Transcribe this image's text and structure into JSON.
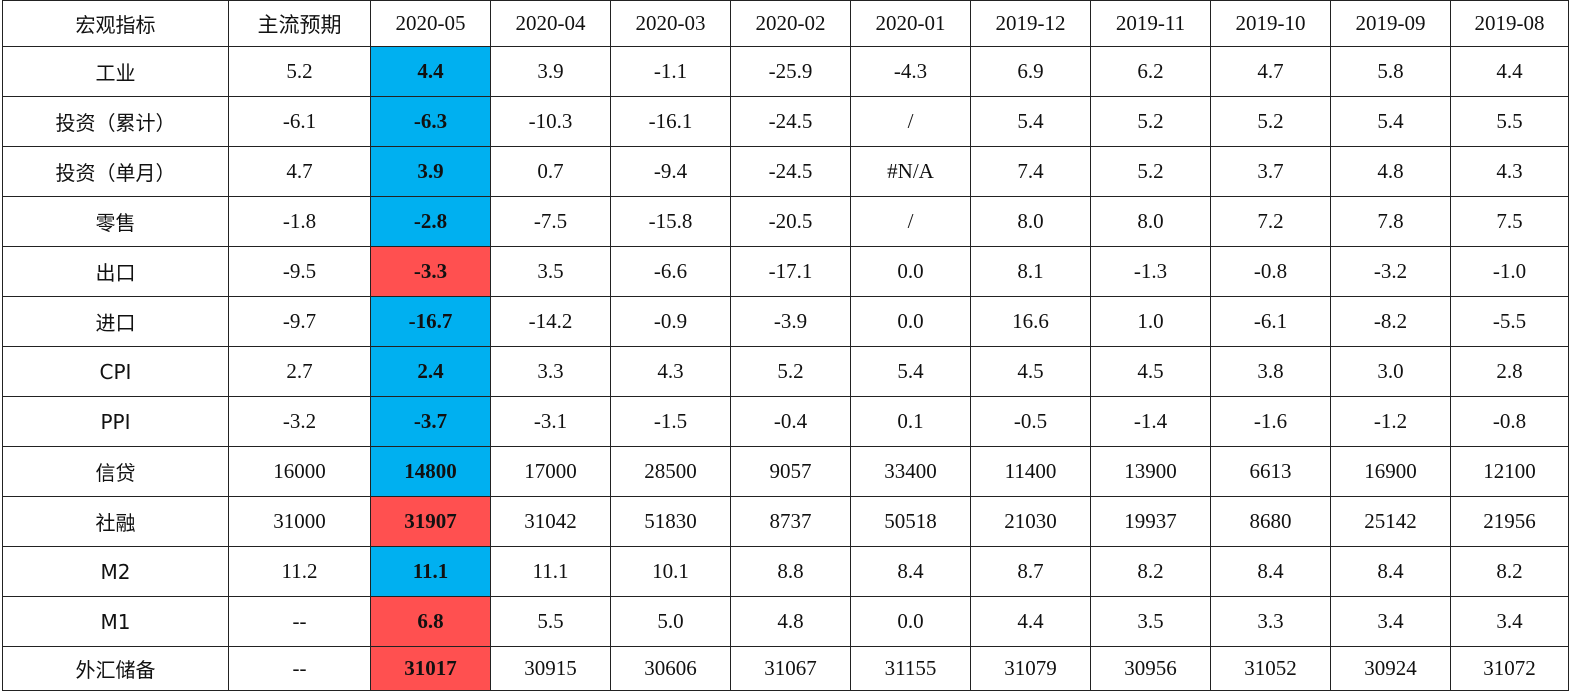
{
  "chart_data": {
    "type": "table",
    "columns": [
      "宏观指标",
      "主流预期",
      "2020-05",
      "2020-04",
      "2020-03",
      "2020-02",
      "2020-01",
      "2019-12",
      "2019-11",
      "2019-10",
      "2019-09",
      "2019-08"
    ],
    "rows": [
      {
        "indicator": "工业",
        "expected": "5.2",
        "current": "4.4",
        "current_highlight": "blue",
        "history": [
          "3.9",
          "-1.1",
          "-25.9",
          "-4.3",
          "6.9",
          "6.2",
          "4.7",
          "5.8",
          "4.4"
        ]
      },
      {
        "indicator": "投资（累计）",
        "expected": "-6.1",
        "current": "-6.3",
        "current_highlight": "blue",
        "history": [
          "-10.3",
          "-16.1",
          "-24.5",
          "/",
          "5.4",
          "5.2",
          "5.2",
          "5.4",
          "5.5"
        ]
      },
      {
        "indicator": "投资（单月）",
        "expected": "4.7",
        "current": "3.9",
        "current_highlight": "blue",
        "history": [
          "0.7",
          "-9.4",
          "-24.5",
          "#N/A",
          "7.4",
          "5.2",
          "3.7",
          "4.8",
          "4.3"
        ]
      },
      {
        "indicator": "零售",
        "expected": "-1.8",
        "current": "-2.8",
        "current_highlight": "blue",
        "history": [
          "-7.5",
          "-15.8",
          "-20.5",
          "/",
          "8.0",
          "8.0",
          "7.2",
          "7.8",
          "7.5"
        ]
      },
      {
        "indicator": "出口",
        "expected": "-9.5",
        "current": "-3.3",
        "current_highlight": "red",
        "history": [
          "3.5",
          "-6.6",
          "-17.1",
          "0.0",
          "8.1",
          "-1.3",
          "-0.8",
          "-3.2",
          "-1.0"
        ]
      },
      {
        "indicator": "进口",
        "expected": "-9.7",
        "current": "-16.7",
        "current_highlight": "blue",
        "history": [
          "-14.2",
          "-0.9",
          "-3.9",
          "0.0",
          "16.6",
          "1.0",
          "-6.1",
          "-8.2",
          "-5.5"
        ]
      },
      {
        "indicator": "CPI",
        "expected": "2.7",
        "current": "2.4",
        "current_highlight": "blue",
        "history": [
          "3.3",
          "4.3",
          "5.2",
          "5.4",
          "4.5",
          "4.5",
          "3.8",
          "3.0",
          "2.8"
        ]
      },
      {
        "indicator": "PPI",
        "expected": "-3.2",
        "current": "-3.7",
        "current_highlight": "blue",
        "history": [
          "-3.1",
          "-1.5",
          "-0.4",
          "0.1",
          "-0.5",
          "-1.4",
          "-1.6",
          "-1.2",
          "-0.8"
        ]
      },
      {
        "indicator": "信贷",
        "expected": "16000",
        "current": "14800",
        "current_highlight": "blue",
        "history": [
          "17000",
          "28500",
          "9057",
          "33400",
          "11400",
          "13900",
          "6613",
          "16900",
          "12100"
        ]
      },
      {
        "indicator": "社融",
        "expected": "31000",
        "current": "31907",
        "current_highlight": "red",
        "history": [
          "31042",
          "51830",
          "8737",
          "50518",
          "21030",
          "19937",
          "8680",
          "25142",
          "21956"
        ]
      },
      {
        "indicator": "M2",
        "expected": "11.2",
        "current": "11.1",
        "current_highlight": "blue",
        "history": [
          "11.1",
          "10.1",
          "8.8",
          "8.4",
          "8.7",
          "8.2",
          "8.4",
          "8.4",
          "8.2"
        ]
      },
      {
        "indicator": "M1",
        "expected": "--",
        "current": "6.8",
        "current_highlight": "red",
        "history": [
          "5.5",
          "5.0",
          "4.8",
          "0.0",
          "4.4",
          "3.5",
          "3.3",
          "3.4",
          "3.4"
        ]
      },
      {
        "indicator": "外汇储备",
        "expected": "--",
        "current": "31017",
        "current_highlight": "red",
        "history": [
          "30915",
          "30606",
          "31067",
          "31155",
          "31079",
          "30956",
          "31052",
          "30924",
          "31072"
        ]
      }
    ]
  },
  "colors": {
    "highlight_blue": "#00b0f0",
    "highlight_red": "#ff5050",
    "border": "#222222",
    "text": "#111111"
  }
}
